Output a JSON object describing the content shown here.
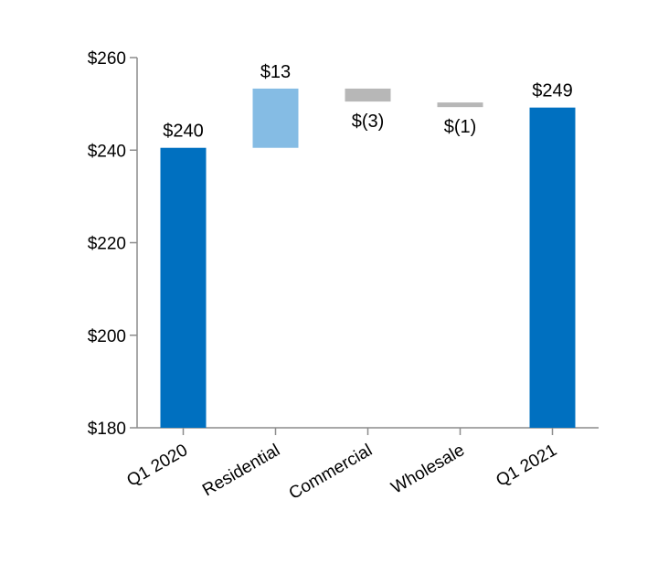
{
  "chart_data": {
    "type": "bar",
    "subtype": "waterfall",
    "title": "",
    "xlabel": "",
    "ylabel": "",
    "ylim": [
      180,
      260
    ],
    "yticks": [
      180,
      200,
      220,
      240,
      260
    ],
    "ytick_labels": [
      "$180",
      "$200",
      "$220",
      "$240",
      "$260"
    ],
    "grid": false,
    "legend": "none",
    "bars": [
      {
        "category": "Q1 2020",
        "kind": "total",
        "start": 180,
        "end": 240.5,
        "label": "$240",
        "color": "#0070c0"
      },
      {
        "category": "Residential",
        "kind": "increase",
        "start": 240.5,
        "end": 253.3,
        "label": "$13",
        "color": "#85bce4"
      },
      {
        "category": "Commercial",
        "kind": "decrease",
        "start": 253.3,
        "end": 250.5,
        "label": "$(3)",
        "color": "#b7b7b7"
      },
      {
        "category": "Wholesale",
        "kind": "decrease",
        "start": 250.3,
        "end": 249.3,
        "label": "$(1)",
        "color": "#b7b7b7"
      },
      {
        "category": "Q1 2021",
        "kind": "total",
        "start": 180,
        "end": 249.2,
        "label": "$249",
        "color": "#0070c0"
      }
    ],
    "axis_color": "#8c8c8c"
  }
}
